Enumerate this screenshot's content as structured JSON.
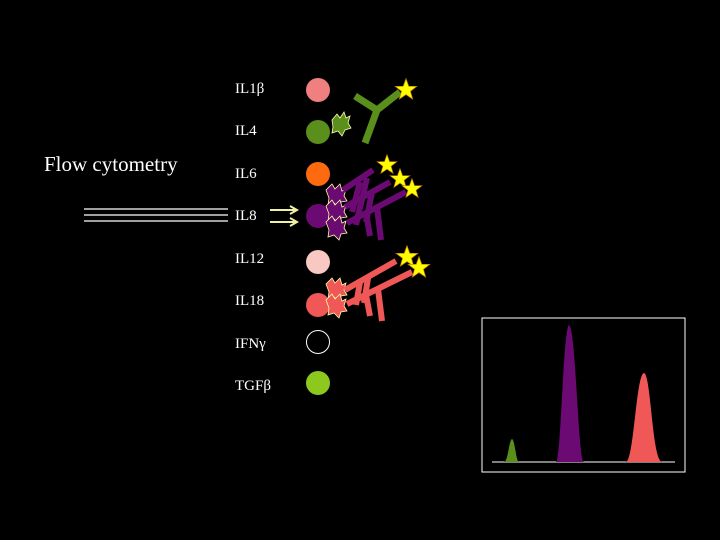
{
  "title": "Flow cytometry",
  "beads": [
    {
      "label": "IL1β",
      "color": "#f08080"
    },
    {
      "label": "IL4",
      "color": "#5a8f1c"
    },
    {
      "label": "IL6",
      "color": "#ff6a10"
    },
    {
      "label": "IL8",
      "color": "#6a0a72"
    },
    {
      "label": "IL12",
      "color": "#f8c8c2"
    },
    {
      "label": "IL18",
      "color": "#f05858"
    },
    {
      "label": "IFNγ",
      "color": "#000000",
      "outline": "#ffffff"
    },
    {
      "label": "TGFβ",
      "color": "#8dc81e"
    }
  ],
  "histogram": {
    "peaks": [
      {
        "bead": "IL4",
        "color": "#5a8f1c",
        "relative_height": 0.17
      },
      {
        "bead": "IL8",
        "color": "#6a0a72",
        "relative_height": 1.0
      },
      {
        "bead": "IL18",
        "color": "#f05858",
        "relative_height": 0.65
      }
    ]
  },
  "colors": {
    "background": "#000000",
    "text": "#ffffff",
    "star": "#ffff00",
    "arrow": "#f0f0a0",
    "frame": "#ffffff"
  }
}
